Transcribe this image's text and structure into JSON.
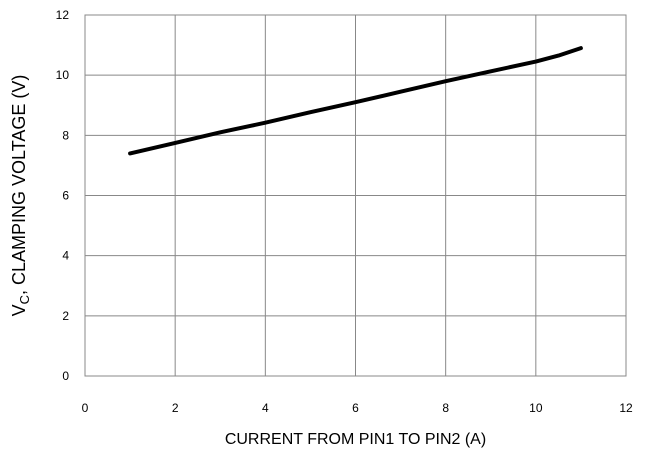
{
  "chart_data": {
    "type": "line",
    "xlabel": "CURRENT FROM PIN1 TO PIN2 (A)",
    "ylabel": {
      "main": "V",
      "sub": "C",
      "rest": ", CLAMPING VOLTAGE (V)"
    },
    "xlim": [
      0,
      12
    ],
    "ylim": [
      0,
      12
    ],
    "x_ticks": [
      "0",
      "2",
      "4",
      "6",
      "8",
      "10",
      "12"
    ],
    "y_ticks": [
      "0",
      "2",
      "4",
      "6",
      "8",
      "10",
      "12"
    ],
    "grid": true,
    "legend": "none",
    "series": [
      {
        "color": "#000000",
        "x": [
          1,
          2,
          3,
          4,
          5,
          6,
          7,
          8,
          9,
          10,
          10.5,
          11
        ],
        "y": [
          7.4,
          7.75,
          8.1,
          8.42,
          8.77,
          9.1,
          9.45,
          9.8,
          10.13,
          10.45,
          10.65,
          10.9
        ]
      }
    ]
  }
}
